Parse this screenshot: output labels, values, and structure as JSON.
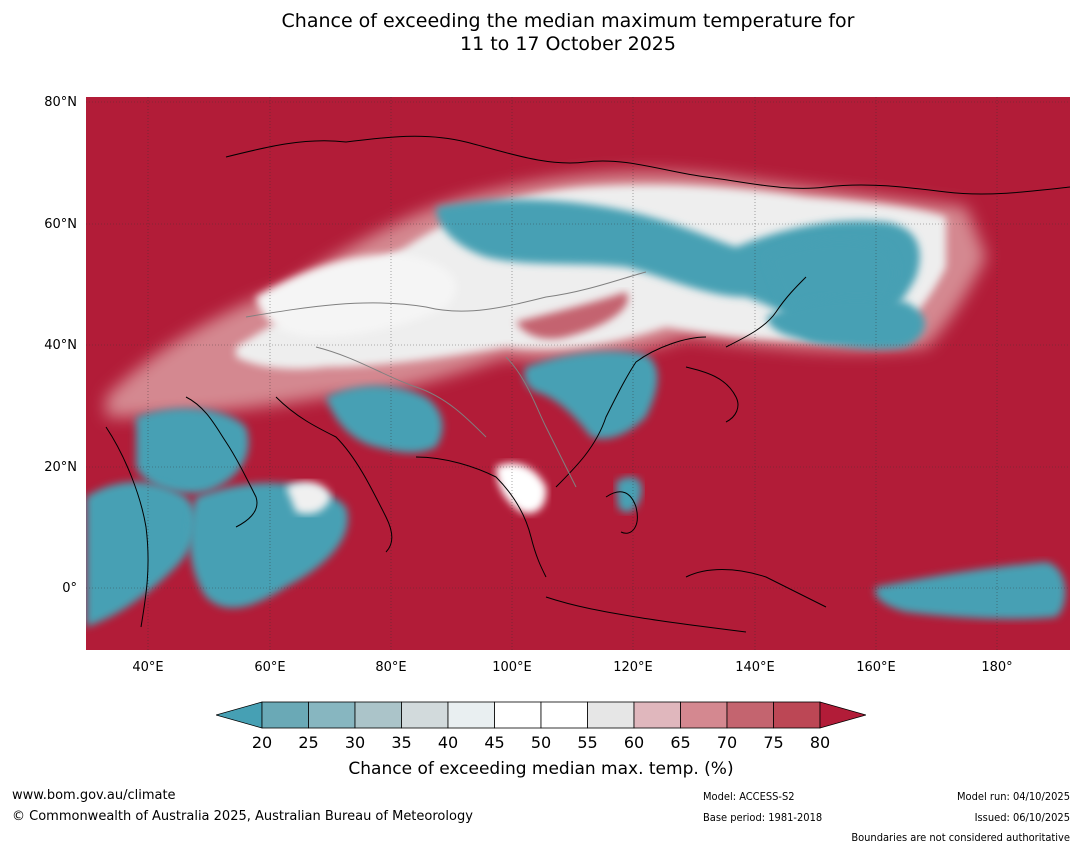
{
  "title": {
    "line1": "Chance of exceeding the median maximum temperature for",
    "line2": "11 to 17 October 2025"
  },
  "map": {
    "lat_labels": [
      "80°N",
      "60°N",
      "40°N",
      "20°N",
      "0°"
    ],
    "lon_labels": [
      "40°E",
      "60°E",
      "80°E",
      "100°E",
      "120°E",
      "140°E",
      "160°E",
      "180°"
    ],
    "colors": {
      "above": "#b21c38",
      "below": "#46a0b4",
      "neutral": "#ffffff",
      "coast": "#000000",
      "border": "#808080"
    }
  },
  "colorbar": {
    "ticks": [
      "20",
      "25",
      "30",
      "35",
      "40",
      "45",
      "50",
      "55",
      "60",
      "65",
      "70",
      "75",
      "80"
    ],
    "colors": [
      "#46a0b4",
      "#6aa9b6",
      "#87b6c0",
      "#abc4c9",
      "#d2dadc",
      "#e9eff1",
      "#ffffff",
      "#ffffff",
      "#e6e6e6",
      "#e0b7bd",
      "#d48890",
      "#c4646f",
      "#bc4755",
      "#b21c38"
    ],
    "label": "Chance of exceeding median max. temp. (%)"
  },
  "footer": {
    "website": "www.bom.gov.au/climate",
    "copyright": "© Commonwealth of Australia 2025, Australian Bureau of Meteorology",
    "model": "Model: ACCESS-S2",
    "base_period": "Base period: 1981-2018",
    "model_run": "Model run: 04/10/2025",
    "issued": "Issued: 06/10/2025",
    "disclaimer": "Boundaries are not considered authoritative"
  }
}
